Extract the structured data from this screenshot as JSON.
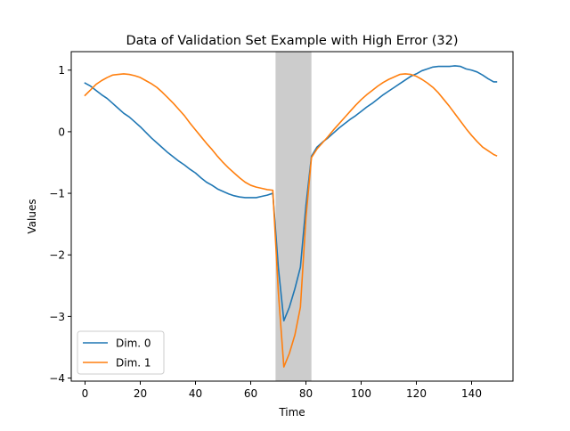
{
  "chart_data": {
    "type": "line",
    "title": "Data of Validation Set Example with High Error (32)",
    "xlabel": "Time",
    "ylabel": "Values",
    "xlim": [
      -5,
      155
    ],
    "ylim": [
      -4.05,
      1.3
    ],
    "xticks": [
      0,
      20,
      40,
      60,
      80,
      100,
      120,
      140
    ],
    "yticks": [
      1,
      0,
      -1,
      -2,
      -3,
      -4
    ],
    "ytick_labels": [
      "1",
      "0",
      "−1",
      "−2",
      "−3",
      "−4"
    ],
    "grid": false,
    "legend_position": "lower-left",
    "highlight_span": {
      "x_start": 69,
      "x_end": 82,
      "color": "#cccccc"
    },
    "series": [
      {
        "name": "Dim. 0",
        "color": "#1f77b4",
        "points": [
          [
            0,
            0.79
          ],
          [
            2,
            0.74
          ],
          [
            4,
            0.67
          ],
          [
            6,
            0.6
          ],
          [
            8,
            0.54
          ],
          [
            10,
            0.46
          ],
          [
            12,
            0.38
          ],
          [
            14,
            0.3
          ],
          [
            16,
            0.24
          ],
          [
            18,
            0.16
          ],
          [
            20,
            0.08
          ],
          [
            22,
            -0.01
          ],
          [
            24,
            -0.1
          ],
          [
            26,
            -0.18
          ],
          [
            28,
            -0.26
          ],
          [
            30,
            -0.34
          ],
          [
            32,
            -0.41
          ],
          [
            34,
            -0.48
          ],
          [
            36,
            -0.54
          ],
          [
            38,
            -0.61
          ],
          [
            40,
            -0.67
          ],
          [
            42,
            -0.75
          ],
          [
            44,
            -0.82
          ],
          [
            46,
            -0.87
          ],
          [
            48,
            -0.93
          ],
          [
            50,
            -0.97
          ],
          [
            52,
            -1.01
          ],
          [
            54,
            -1.04
          ],
          [
            56,
            -1.06
          ],
          [
            58,
            -1.07
          ],
          [
            60,
            -1.07
          ],
          [
            62,
            -1.07
          ],
          [
            64,
            -1.05
          ],
          [
            66,
            -1.03
          ],
          [
            68,
            -1.0
          ],
          [
            70,
            -2.2
          ],
          [
            72,
            -3.07
          ],
          [
            74,
            -2.85
          ],
          [
            76,
            -2.55
          ],
          [
            78,
            -2.2
          ],
          [
            80,
            -1.2
          ],
          [
            82,
            -0.4
          ],
          [
            84,
            -0.25
          ],
          [
            86,
            -0.17
          ],
          [
            88,
            -0.1
          ],
          [
            90,
            -0.02
          ],
          [
            92,
            0.06
          ],
          [
            94,
            0.13
          ],
          [
            96,
            0.2
          ],
          [
            98,
            0.26
          ],
          [
            100,
            0.33
          ],
          [
            102,
            0.4
          ],
          [
            104,
            0.46
          ],
          [
            106,
            0.53
          ],
          [
            108,
            0.6
          ],
          [
            110,
            0.66
          ],
          [
            112,
            0.72
          ],
          [
            114,
            0.78
          ],
          [
            116,
            0.84
          ],
          [
            118,
            0.9
          ],
          [
            120,
            0.94
          ],
          [
            122,
            0.99
          ],
          [
            124,
            1.02
          ],
          [
            126,
            1.05
          ],
          [
            128,
            1.06
          ],
          [
            130,
            1.06
          ],
          [
            132,
            1.06
          ],
          [
            134,
            1.07
          ],
          [
            136,
            1.06
          ],
          [
            138,
            1.02
          ],
          [
            140,
            1.0
          ],
          [
            142,
            0.97
          ],
          [
            144,
            0.92
          ],
          [
            146,
            0.86
          ],
          [
            148,
            0.81
          ],
          [
            149,
            0.81
          ]
        ]
      },
      {
        "name": "Dim. 1",
        "color": "#ff7f0e",
        "points": [
          [
            0,
            0.59
          ],
          [
            2,
            0.68
          ],
          [
            4,
            0.77
          ],
          [
            6,
            0.83
          ],
          [
            8,
            0.88
          ],
          [
            10,
            0.92
          ],
          [
            12,
            0.93
          ],
          [
            14,
            0.94
          ],
          [
            16,
            0.93
          ],
          [
            18,
            0.91
          ],
          [
            20,
            0.88
          ],
          [
            22,
            0.83
          ],
          [
            24,
            0.78
          ],
          [
            26,
            0.72
          ],
          [
            28,
            0.64
          ],
          [
            30,
            0.55
          ],
          [
            32,
            0.46
          ],
          [
            34,
            0.36
          ],
          [
            36,
            0.26
          ],
          [
            38,
            0.14
          ],
          [
            40,
            0.03
          ],
          [
            42,
            -0.08
          ],
          [
            44,
            -0.19
          ],
          [
            46,
            -0.29
          ],
          [
            48,
            -0.4
          ],
          [
            50,
            -0.5
          ],
          [
            52,
            -0.59
          ],
          [
            54,
            -0.67
          ],
          [
            56,
            -0.75
          ],
          [
            58,
            -0.82
          ],
          [
            60,
            -0.87
          ],
          [
            62,
            -0.9
          ],
          [
            64,
            -0.92
          ],
          [
            66,
            -0.94
          ],
          [
            68,
            -0.95
          ],
          [
            70,
            -2.6
          ],
          [
            72,
            -3.82
          ],
          [
            74,
            -3.6
          ],
          [
            76,
            -3.3
          ],
          [
            78,
            -2.85
          ],
          [
            80,
            -1.4
          ],
          [
            82,
            -0.42
          ],
          [
            84,
            -0.28
          ],
          [
            86,
            -0.18
          ],
          [
            88,
            -0.08
          ],
          [
            90,
            0.03
          ],
          [
            92,
            0.13
          ],
          [
            94,
            0.23
          ],
          [
            96,
            0.33
          ],
          [
            98,
            0.43
          ],
          [
            100,
            0.52
          ],
          [
            102,
            0.6
          ],
          [
            104,
            0.67
          ],
          [
            106,
            0.74
          ],
          [
            108,
            0.8
          ],
          [
            110,
            0.85
          ],
          [
            112,
            0.89
          ],
          [
            114,
            0.93
          ],
          [
            116,
            0.94
          ],
          [
            118,
            0.93
          ],
          [
            120,
            0.9
          ],
          [
            122,
            0.85
          ],
          [
            124,
            0.79
          ],
          [
            126,
            0.72
          ],
          [
            128,
            0.63
          ],
          [
            130,
            0.52
          ],
          [
            132,
            0.41
          ],
          [
            134,
            0.29
          ],
          [
            136,
            0.17
          ],
          [
            138,
            0.05
          ],
          [
            140,
            -0.06
          ],
          [
            142,
            -0.16
          ],
          [
            144,
            -0.25
          ],
          [
            146,
            -0.31
          ],
          [
            148,
            -0.37
          ],
          [
            149,
            -0.39
          ]
        ]
      }
    ]
  }
}
